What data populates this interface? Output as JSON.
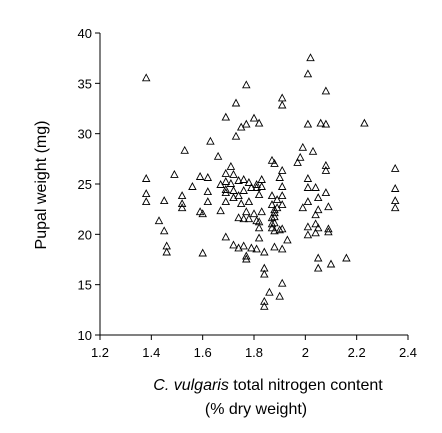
{
  "chart_data": {
    "type": "scatter",
    "marker": "open-triangle",
    "xlabel_italic": "C. vulgaris",
    "xlabel_rest": " total nitrogen content",
    "xlabel_line2": "(% dry weight)",
    "ylabel": "Pupal weight (mg)",
    "xlim": [
      1.2,
      2.4
    ],
    "ylim": [
      10,
      40
    ],
    "xticks": [
      "1.2",
      "1.4",
      "1.6",
      "1.8",
      "2",
      "2.2",
      "2.4"
    ],
    "yticks": [
      "10",
      "15",
      "20",
      "25",
      "30",
      "35",
      "40"
    ],
    "grid": false,
    "legend": false,
    "points": [
      [
        1.38,
        35.5
      ],
      [
        1.38,
        25.5
      ],
      [
        1.38,
        24.0
      ],
      [
        1.38,
        23.2
      ],
      [
        1.43,
        21.3
      ],
      [
        1.45,
        20.3
      ],
      [
        1.45,
        23.3
      ],
      [
        1.46,
        18.8
      ],
      [
        1.46,
        18.2
      ],
      [
        1.49,
        25.9
      ],
      [
        1.52,
        23.8
      ],
      [
        1.52,
        23.0
      ],
      [
        1.52,
        22.6
      ],
      [
        1.53,
        28.3
      ],
      [
        1.56,
        24.7
      ],
      [
        1.59,
        25.7
      ],
      [
        1.59,
        22.2
      ],
      [
        1.6,
        22.0
      ],
      [
        1.6,
        18.1
      ],
      [
        1.62,
        25.6
      ],
      [
        1.62,
        24.2
      ],
      [
        1.62,
        23.2
      ],
      [
        1.63,
        29.2
      ],
      [
        1.66,
        27.7
      ],
      [
        1.67,
        24.9
      ],
      [
        1.67,
        22.3
      ],
      [
        1.69,
        31.6
      ],
      [
        1.69,
        26.0
      ],
      [
        1.69,
        25.2
      ],
      [
        1.69,
        24.4
      ],
      [
        1.69,
        24.1
      ],
      [
        1.69,
        23.2
      ],
      [
        1.69,
        19.7
      ],
      [
        1.71,
        26.7
      ],
      [
        1.71,
        25.0
      ],
      [
        1.72,
        25.9
      ],
      [
        1.72,
        24.3
      ],
      [
        1.72,
        23.6
      ],
      [
        1.72,
        18.9
      ],
      [
        1.73,
        29.7
      ],
      [
        1.73,
        33.0
      ],
      [
        1.74,
        25.3
      ],
      [
        1.74,
        23.8
      ],
      [
        1.74,
        21.6
      ],
      [
        1.74,
        18.6
      ],
      [
        1.75,
        30.6
      ],
      [
        1.75,
        23.0
      ],
      [
        1.76,
        25.4
      ],
      [
        1.76,
        24.3
      ],
      [
        1.76,
        21.5
      ],
      [
        1.76,
        18.8
      ],
      [
        1.77,
        34.8
      ],
      [
        1.77,
        30.9
      ],
      [
        1.77,
        22.2
      ],
      [
        1.77,
        17.8
      ],
      [
        1.77,
        17.5
      ],
      [
        1.78,
        25.1
      ],
      [
        1.78,
        23.2
      ],
      [
        1.78,
        21.5
      ],
      [
        1.79,
        24.6
      ],
      [
        1.79,
        18.6
      ],
      [
        1.8,
        31.5
      ],
      [
        1.8,
        22.0
      ],
      [
        1.81,
        24.9
      ],
      [
        1.81,
        24.6
      ],
      [
        1.81,
        21.3
      ],
      [
        1.81,
        18.5
      ],
      [
        1.82,
        31.0
      ],
      [
        1.82,
        23.9
      ],
      [
        1.82,
        21.2
      ],
      [
        1.82,
        20.6
      ],
      [
        1.82,
        19.6
      ],
      [
        1.83,
        25.4
      ],
      [
        1.83,
        24.7
      ],
      [
        1.83,
        22.2
      ],
      [
        1.84,
        18.2
      ],
      [
        1.84,
        16.6
      ],
      [
        1.84,
        16.0
      ],
      [
        1.84,
        13.3
      ],
      [
        1.84,
        12.8
      ],
      [
        1.86,
        14.2
      ],
      [
        1.87,
        27.3
      ],
      [
        1.87,
        23.8
      ],
      [
        1.87,
        22.9
      ],
      [
        1.87,
        21.6
      ],
      [
        1.87,
        21.0
      ],
      [
        1.87,
        20.6
      ],
      [
        1.88,
        27.0
      ],
      [
        1.88,
        22.4
      ],
      [
        1.88,
        22.1
      ],
      [
        1.88,
        21.7
      ],
      [
        1.88,
        21.1
      ],
      [
        1.88,
        20.3
      ],
      [
        1.88,
        18.7
      ],
      [
        1.89,
        23.4
      ],
      [
        1.89,
        22.6
      ],
      [
        1.9,
        25.6
      ],
      [
        1.9,
        20.4
      ],
      [
        1.91,
        33.5
      ],
      [
        1.91,
        32.8
      ],
      [
        1.91,
        26.3
      ],
      [
        1.91,
        24.7
      ],
      [
        1.91,
        23.8
      ],
      [
        1.91,
        22.9
      ],
      [
        1.91,
        20.5
      ],
      [
        1.91,
        18.5
      ],
      [
        1.91,
        15.1
      ],
      [
        1.9,
        13.8
      ],
      [
        1.93,
        19.4
      ],
      [
        1.97,
        27.1
      ],
      [
        1.98,
        27.6
      ],
      [
        1.99,
        28.6
      ],
      [
        1.99,
        22.6
      ],
      [
        2.01,
        35.9
      ],
      [
        2.01,
        30.9
      ],
      [
        2.01,
        25.5
      ],
      [
        2.01,
        24.6
      ],
      [
        2.01,
        23.2
      ],
      [
        2.01,
        20.7
      ],
      [
        2.01,
        19.9
      ],
      [
        2.02,
        37.5
      ],
      [
        2.03,
        28.2
      ],
      [
        2.04,
        24.6
      ],
      [
        2.04,
        21.9
      ],
      [
        2.04,
        21.0
      ],
      [
        2.04,
        20.1
      ],
      [
        2.05,
        23.6
      ],
      [
        2.05,
        22.4
      ],
      [
        2.05,
        20.6
      ],
      [
        2.05,
        17.6
      ],
      [
        2.05,
        16.6
      ],
      [
        2.06,
        31.0
      ],
      [
        2.08,
        34.2
      ],
      [
        2.08,
        30.9
      ],
      [
        2.08,
        26.8
      ],
      [
        2.08,
        26.3
      ],
      [
        2.08,
        24.1
      ],
      [
        2.09,
        22.7
      ],
      [
        2.09,
        20.5
      ],
      [
        2.09,
        20.2
      ],
      [
        2.1,
        17.0
      ],
      [
        2.16,
        17.6
      ],
      [
        2.23,
        31.0
      ],
      [
        2.35,
        26.5
      ],
      [
        2.35,
        24.5
      ],
      [
        2.35,
        23.3
      ],
      [
        2.35,
        22.6
      ]
    ]
  }
}
